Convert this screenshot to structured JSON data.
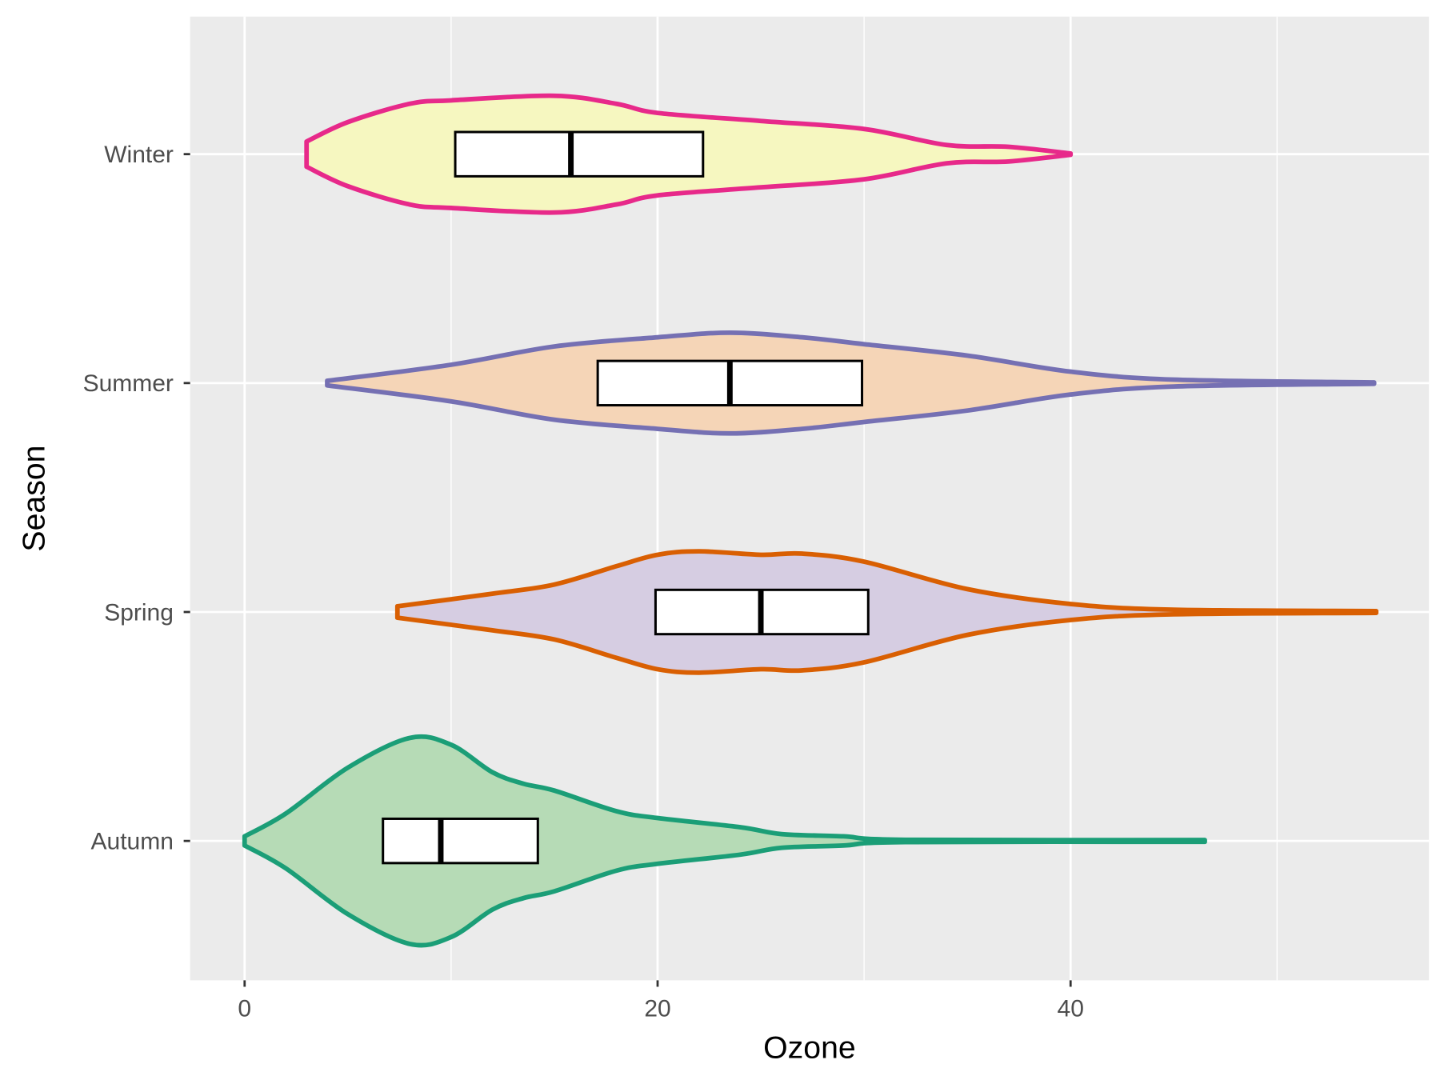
{
  "chart_data": {
    "type": "violin",
    "orientation": "horizontal",
    "xlabel": "Ozone",
    "ylabel": "Season",
    "xlim": [
      -2.6,
      57.4
    ],
    "x_ticks": [
      0,
      20,
      40
    ],
    "x_tick_labels": [
      "0",
      "20",
      "40"
    ],
    "x_minor": [
      10,
      30,
      50
    ],
    "categories": [
      "Autumn",
      "Spring",
      "Summer",
      "Winter"
    ],
    "series": [
      {
        "name": "Autumn",
        "fill": "#b6dbb6",
        "stroke": "#1b9e77",
        "density": [
          [
            0,
            0.02
          ],
          [
            2,
            0.12
          ],
          [
            5,
            0.32
          ],
          [
            8,
            0.45
          ],
          [
            10,
            0.42
          ],
          [
            12,
            0.3
          ],
          [
            13.5,
            0.25
          ],
          [
            15,
            0.22
          ],
          [
            18,
            0.13
          ],
          [
            20,
            0.1
          ],
          [
            24,
            0.06
          ],
          [
            26,
            0.03
          ],
          [
            29,
            0.02
          ],
          [
            32,
            0.005
          ],
          [
            46.5,
            0.004
          ]
        ],
        "box": {
          "q1": 6.7,
          "median": 9.5,
          "q3": 14.2
        }
      },
      {
        "name": "Spring",
        "fill": "#d6cde2",
        "stroke": "#d95f02",
        "density": [
          [
            7.4,
            0.025
          ],
          [
            12,
            0.08
          ],
          [
            15,
            0.12
          ],
          [
            18,
            0.2
          ],
          [
            20,
            0.25
          ],
          [
            22,
            0.265
          ],
          [
            25,
            0.25
          ],
          [
            27,
            0.255
          ],
          [
            30,
            0.22
          ],
          [
            35,
            0.1
          ],
          [
            40,
            0.035
          ],
          [
            45,
            0.01
          ],
          [
            54.8,
            0.004
          ]
        ],
        "box": {
          "q1": 19.9,
          "median": 25.0,
          "q3": 30.2
        }
      },
      {
        "name": "Summer",
        "fill": "#f5d5b7",
        "stroke": "#7570b3",
        "density": [
          [
            4,
            0.01
          ],
          [
            10,
            0.08
          ],
          [
            15,
            0.16
          ],
          [
            20,
            0.2
          ],
          [
            23.5,
            0.22
          ],
          [
            27,
            0.2
          ],
          [
            30,
            0.17
          ],
          [
            35,
            0.12
          ],
          [
            40,
            0.05
          ],
          [
            45,
            0.015
          ],
          [
            54.7,
            0.003
          ]
        ],
        "box": {
          "q1": 17.1,
          "median": 23.5,
          "q3": 29.9
        }
      },
      {
        "name": "Winter",
        "fill": "#f6f7c0",
        "stroke": "#e7298a",
        "density": [
          [
            3,
            0.055
          ],
          [
            5,
            0.14
          ],
          [
            8,
            0.22
          ],
          [
            10,
            0.235
          ],
          [
            15,
            0.255
          ],
          [
            18,
            0.22
          ],
          [
            20,
            0.18
          ],
          [
            25,
            0.145
          ],
          [
            30,
            0.11
          ],
          [
            34,
            0.04
          ],
          [
            37,
            0.032
          ],
          [
            40,
            0.003
          ]
        ],
        "box": {
          "q1": 10.2,
          "median": 15.8,
          "q3": 22.2
        }
      }
    ]
  }
}
